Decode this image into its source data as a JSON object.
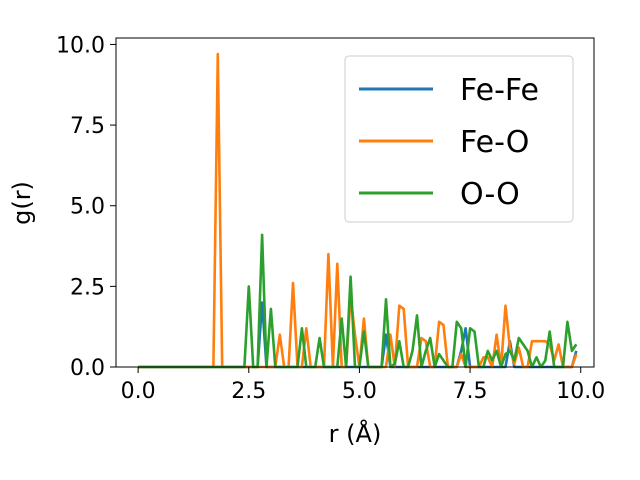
{
  "chart_data": {
    "type": "line",
    "title": "",
    "xlabel": "r (Å)",
    "ylabel": "g(r)",
    "xlim": [
      -0.5,
      10.3
    ],
    "ylim": [
      0,
      10.2
    ],
    "xticks": [
      "0.0",
      "2.5",
      "5.0",
      "7.5",
      "10.0"
    ],
    "yticks": [
      "0.0",
      "2.5",
      "5.0",
      "7.5",
      "10.0"
    ],
    "grid": false,
    "legend_position": "top-right",
    "series": [
      {
        "name": "Fe-Fe",
        "color": "#1f77b4",
        "points": [
          [
            0,
            0
          ],
          [
            2.7,
            0
          ],
          [
            2.8,
            2.0
          ],
          [
            2.9,
            0
          ],
          [
            5.5,
            0
          ],
          [
            5.6,
            1.0
          ],
          [
            5.7,
            0
          ],
          [
            7.2,
            0
          ],
          [
            7.3,
            0.5
          ],
          [
            7.4,
            1.2
          ],
          [
            7.5,
            0
          ],
          [
            8.3,
            0
          ],
          [
            8.4,
            0.8
          ],
          [
            8.5,
            0
          ],
          [
            9.8,
            0
          ],
          [
            9.9,
            0.5
          ]
        ]
      },
      {
        "name": "Fe-O",
        "color": "#ff7f0e",
        "points": [
          [
            0,
            0
          ],
          [
            1.7,
            0
          ],
          [
            1.8,
            9.7
          ],
          [
            1.9,
            0
          ],
          [
            3.1,
            0
          ],
          [
            3.2,
            1.0
          ],
          [
            3.3,
            0
          ],
          [
            3.4,
            0
          ],
          [
            3.5,
            2.6
          ],
          [
            3.6,
            0
          ],
          [
            3.7,
            0
          ],
          [
            3.8,
            1.2
          ],
          [
            3.9,
            0
          ],
          [
            4.2,
            0
          ],
          [
            4.3,
            3.5
          ],
          [
            4.4,
            0
          ],
          [
            4.5,
            3.2
          ],
          [
            4.6,
            0
          ],
          [
            4.7,
            0
          ],
          [
            4.8,
            2.2
          ],
          [
            4.9,
            1.0
          ],
          [
            5.0,
            0
          ],
          [
            5.1,
            1.5
          ],
          [
            5.2,
            0
          ],
          [
            5.6,
            0
          ],
          [
            5.7,
            1.0
          ],
          [
            5.8,
            0
          ],
          [
            5.9,
            1.9
          ],
          [
            6.0,
            1.8
          ],
          [
            6.1,
            0
          ],
          [
            6.3,
            0
          ],
          [
            6.4,
            0.9
          ],
          [
            6.5,
            0.8
          ],
          [
            6.6,
            0
          ],
          [
            6.7,
            0
          ],
          [
            6.8,
            1.4
          ],
          [
            6.9,
            1.3
          ],
          [
            7.0,
            0
          ],
          [
            7.1,
            0
          ],
          [
            7.2,
            0
          ],
          [
            7.3,
            0.4
          ],
          [
            7.4,
            0
          ],
          [
            7.5,
            0
          ],
          [
            7.7,
            0
          ],
          [
            7.8,
            0.3
          ],
          [
            7.9,
            0.3
          ],
          [
            8.0,
            0
          ],
          [
            8.1,
            1.0
          ],
          [
            8.2,
            0
          ],
          [
            8.3,
            1.9
          ],
          [
            8.4,
            0.6
          ],
          [
            8.5,
            0.1
          ],
          [
            8.6,
            0.6
          ],
          [
            8.7,
            0
          ],
          [
            8.8,
            0
          ],
          [
            8.9,
            0.8
          ],
          [
            9.0,
            0.8
          ],
          [
            9.1,
            0.8
          ],
          [
            9.2,
            0.8
          ],
          [
            9.3,
            0.7
          ],
          [
            9.4,
            0.2
          ],
          [
            9.5,
            0.7
          ],
          [
            9.6,
            0
          ],
          [
            9.7,
            0
          ],
          [
            9.8,
            0
          ],
          [
            9.9,
            0.4
          ]
        ]
      },
      {
        "name": "O-O",
        "color": "#2ca02c",
        "points": [
          [
            0,
            0
          ],
          [
            2.4,
            0
          ],
          [
            2.5,
            2.5
          ],
          [
            2.6,
            0
          ],
          [
            2.7,
            0
          ],
          [
            2.8,
            4.1
          ],
          [
            2.9,
            0
          ],
          [
            3.0,
            1.8
          ],
          [
            3.1,
            0
          ],
          [
            3.6,
            0
          ],
          [
            3.7,
            1.2
          ],
          [
            3.8,
            0
          ],
          [
            4.0,
            0
          ],
          [
            4.1,
            0.9
          ],
          [
            4.2,
            0
          ],
          [
            4.5,
            0
          ],
          [
            4.6,
            1.5
          ],
          [
            4.7,
            0
          ],
          [
            4.8,
            2.8
          ],
          [
            4.9,
            0
          ],
          [
            5.0,
            0
          ],
          [
            5.1,
            1.1
          ],
          [
            5.2,
            0
          ],
          [
            5.5,
            0
          ],
          [
            5.6,
            2.1
          ],
          [
            5.7,
            0
          ],
          [
            5.8,
            0.1
          ],
          [
            5.9,
            0.8
          ],
          [
            6.0,
            0
          ],
          [
            6.1,
            0
          ],
          [
            6.2,
            0.5
          ],
          [
            6.3,
            1.6
          ],
          [
            6.4,
            0
          ],
          [
            6.5,
            0.5
          ],
          [
            6.6,
            0.9
          ],
          [
            6.7,
            0
          ],
          [
            6.8,
            0.4
          ],
          [
            6.9,
            0.2
          ],
          [
            7.0,
            0
          ],
          [
            7.1,
            0
          ],
          [
            7.2,
            1.4
          ],
          [
            7.3,
            1.2
          ],
          [
            7.4,
            0
          ],
          [
            7.5,
            1.2
          ],
          [
            7.6,
            1.1
          ],
          [
            7.7,
            0
          ],
          [
            7.8,
            0
          ],
          [
            7.9,
            0.5
          ],
          [
            8.0,
            0.2
          ],
          [
            8.1,
            0.5
          ],
          [
            8.2,
            0
          ],
          [
            8.3,
            0.4
          ],
          [
            8.4,
            0.5
          ],
          [
            8.5,
            0.2
          ],
          [
            8.6,
            0.9
          ],
          [
            8.7,
            0.7
          ],
          [
            8.8,
            0.5
          ],
          [
            8.9,
            0
          ],
          [
            9.0,
            0.3
          ],
          [
            9.1,
            0
          ],
          [
            9.2,
            0.2
          ],
          [
            9.3,
            1.1
          ],
          [
            9.4,
            0
          ],
          [
            9.5,
            0
          ],
          [
            9.6,
            0
          ],
          [
            9.7,
            1.4
          ],
          [
            9.8,
            0.5
          ],
          [
            9.9,
            0.7
          ]
        ]
      }
    ]
  }
}
